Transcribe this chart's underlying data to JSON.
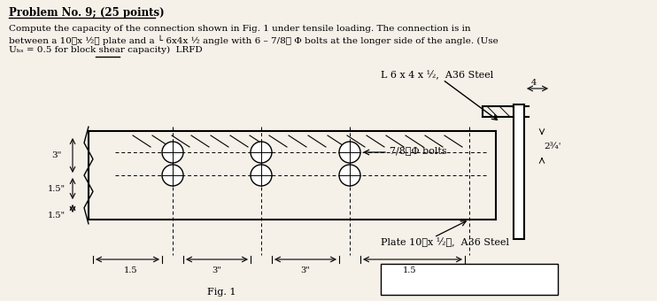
{
  "bg_color": "#f5f0e8",
  "title_text": "Problem No. 9; (25 points)",
  "problem_text_line1": "Compute the capacity of the connection shown in Fig. 1 under tensile loading. The connection is in",
  "problem_text_line2": "between a 10⊾x ½⊾ plate and a └ 6x4x ½ angle with 6 – 7/8⊾ Φ bolts at the longer side of the angle. (Use",
  "problem_text_line3": "Uₕₛ = 0.5 for block shear capacity)  LRFD",
  "label_L6x4": "L 6 x 4 x ½,  A36 Steel",
  "label_plate": "Plate 10⊾x ½⊾,  A36 Steel",
  "label_bolts": "7/8⊾Φ bolts",
  "dim_3": "3\"",
  "dim_1p5_top": "1.5\"",
  "dim_1p5_bot": "1.5\"",
  "dim_spacing_3a": "3\"",
  "dim_spacing_3b": "3\"",
  "dim_1p5_right": "1.5",
  "dim_1p5_left": "1.5",
  "dim_4": "4",
  "dim_2_3_4": "2¾"
}
